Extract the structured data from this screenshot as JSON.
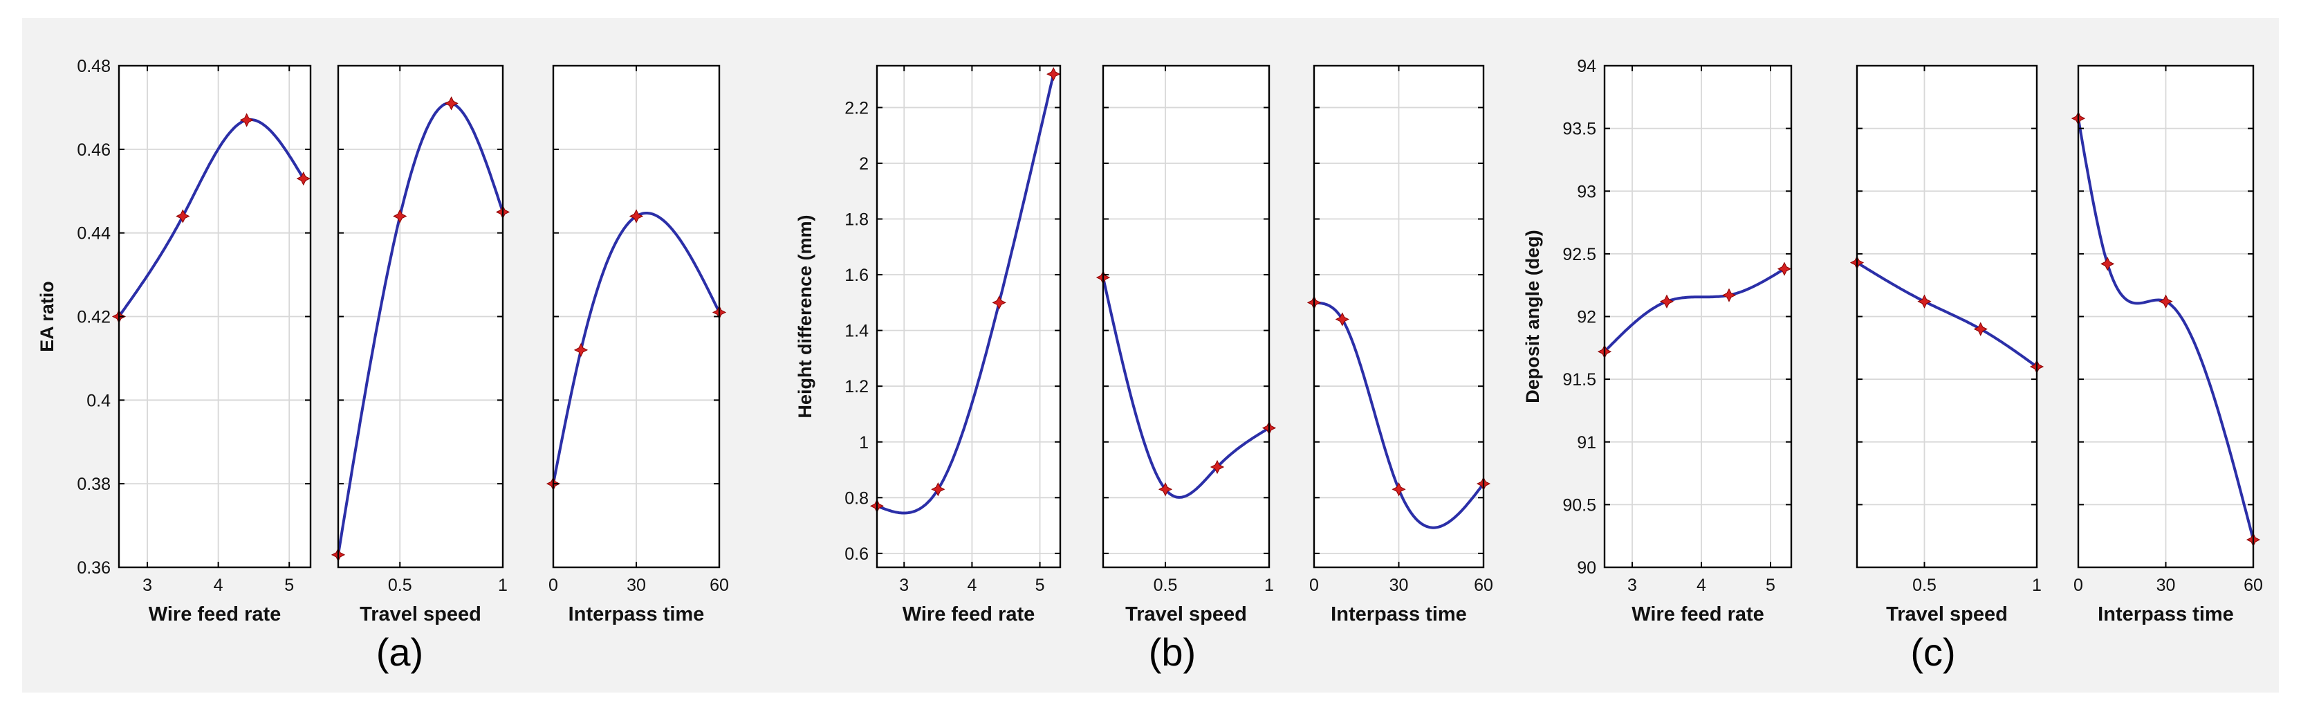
{
  "chart_data": [
    {
      "type": "line",
      "label": "(a)",
      "ylabel": "EA ratio",
      "ylim": [
        0.36,
        0.48
      ],
      "yticks": [
        0.36,
        0.38,
        0.4,
        0.42,
        0.44,
        0.46,
        0.48
      ],
      "grid": true,
      "subplots": [
        {
          "xlabel": "Wire feed rate",
          "xlim": [
            2.6,
            5.3
          ],
          "xticks": [
            3,
            4,
            5
          ],
          "x": [
            2.6,
            3.5,
            4.4,
            5.2
          ],
          "y": [
            0.42,
            0.444,
            0.467,
            0.453
          ]
        },
        {
          "xlabel": "Travel speed",
          "xlim": [
            0.2,
            1.0
          ],
          "xticks": [
            0.5,
            1
          ],
          "x": [
            0.2,
            0.5,
            0.75,
            1.0
          ],
          "y": [
            0.363,
            0.444,
            0.471,
            0.445
          ]
        },
        {
          "xlabel": "Interpass time",
          "xlim": [
            0,
            60
          ],
          "xticks": [
            0,
            30,
            60
          ],
          "x": [
            0,
            10,
            30,
            60
          ],
          "y": [
            0.38,
            0.412,
            0.444,
            0.421
          ]
        }
      ]
    },
    {
      "type": "line",
      "label": "(b)",
      "ylabel": "Height difference (mm)",
      "ylim": [
        0.55,
        2.35
      ],
      "yticks": [
        0.6,
        0.8,
        1,
        1.2,
        1.4,
        1.6,
        1.8,
        2,
        2.2
      ],
      "grid": true,
      "subplots": [
        {
          "xlabel": "Wire feed rate",
          "xlim": [
            2.6,
            5.3
          ],
          "xticks": [
            3,
            4,
            5
          ],
          "x": [
            2.6,
            3.5,
            4.4,
            5.2
          ],
          "y": [
            0.77,
            0.83,
            1.5,
            2.32
          ]
        },
        {
          "xlabel": "Travel speed",
          "xlim": [
            0.2,
            1.0
          ],
          "xticks": [
            0.5,
            1
          ],
          "x": [
            0.2,
            0.5,
            0.75,
            1.0
          ],
          "y": [
            1.59,
            0.83,
            0.91,
            1.05
          ]
        },
        {
          "xlabel": "Interpass time",
          "xlim": [
            0,
            60
          ],
          "xticks": [
            0,
            30,
            60
          ],
          "x": [
            0,
            10,
            30,
            60
          ],
          "y": [
            1.5,
            1.44,
            0.83,
            0.85
          ]
        }
      ]
    },
    {
      "type": "line",
      "label": "(c)",
      "ylabel": "Deposit angle (deg)",
      "ylim": [
        90,
        94
      ],
      "yticks": [
        90,
        90.5,
        91,
        91.5,
        92,
        92.5,
        93,
        93.5,
        94
      ],
      "grid": true,
      "subplots": [
        {
          "xlabel": "Wire feed rate",
          "xlim": [
            2.6,
            5.3
          ],
          "xticks": [
            3,
            4,
            5
          ],
          "x": [
            2.6,
            3.5,
            4.4,
            5.2
          ],
          "y": [
            91.72,
            92.12,
            92.17,
            92.38
          ]
        },
        {
          "xlabel": "Travel speed",
          "xlim": [
            0.2,
            1.0
          ],
          "xticks": [
            0.5,
            1
          ],
          "x": [
            0.2,
            0.5,
            0.75,
            1.0
          ],
          "y": [
            92.43,
            92.12,
            91.9,
            91.6
          ]
        },
        {
          "xlabel": "Interpass time",
          "xlim": [
            0,
            60
          ],
          "xticks": [
            0,
            30,
            60
          ],
          "x": [
            0,
            10,
            30,
            60
          ],
          "y": [
            93.58,
            92.42,
            92.12,
            90.22
          ]
        }
      ]
    }
  ],
  "colors": {
    "curve": "#2b2fa8",
    "marker": "#d42020",
    "frame_background": "#f2f2f2"
  }
}
